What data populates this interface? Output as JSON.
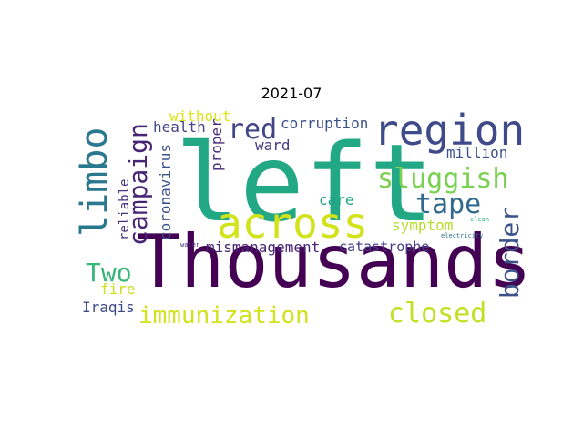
{
  "title": "2021-07",
  "words": [
    {
      "text": "left",
      "color": "#22a884",
      "orient": "h"
    },
    {
      "text": "Thousands",
      "color": "#440154",
      "orient": "h"
    },
    {
      "text": "across",
      "color": "#d2e21b",
      "orient": "h"
    },
    {
      "text": "region",
      "color": "#3e4a89",
      "orient": "h"
    },
    {
      "text": "limbo",
      "color": "#2a788e",
      "orient": "v"
    },
    {
      "text": "campaign",
      "color": "#482475",
      "orient": "v"
    },
    {
      "text": "sluggish",
      "color": "#7ad151",
      "orient": "h"
    },
    {
      "text": "tape",
      "color": "#31688e",
      "orient": "h"
    },
    {
      "text": "red",
      "color": "#414487",
      "orient": "h"
    },
    {
      "text": "border",
      "color": "#3b528b",
      "orient": "v"
    },
    {
      "text": "immunization",
      "color": "#d2e21b",
      "orient": "h"
    },
    {
      "text": "closed",
      "color": "#c2df23",
      "orient": "h"
    },
    {
      "text": "Two",
      "color": "#35b779",
      "orient": "h"
    },
    {
      "text": "without",
      "color": "#dde318",
      "orient": "h"
    },
    {
      "text": "corruption",
      "color": "#3b528b",
      "orient": "h"
    },
    {
      "text": "health",
      "color": "#414487",
      "orient": "h"
    },
    {
      "text": "ward",
      "color": "#433e85",
      "orient": "h"
    },
    {
      "text": "million",
      "color": "#3b528b",
      "orient": "h"
    },
    {
      "text": "care",
      "color": "#1fa187",
      "orient": "h"
    },
    {
      "text": "symptom",
      "color": "#b5de2b",
      "orient": "h"
    },
    {
      "text": "proper",
      "color": "#472c7a",
      "orient": "v"
    },
    {
      "text": "coronavirus",
      "color": "#3b528b",
      "orient": "v"
    },
    {
      "text": "reliable",
      "color": "#46337e",
      "orient": "v"
    },
    {
      "text": "mismanagement",
      "color": "#482475",
      "orient": "h"
    },
    {
      "text": "catastrophe",
      "color": "#433e85",
      "orient": "h"
    },
    {
      "text": "fire",
      "color": "#c8e020",
      "orient": "h"
    },
    {
      "text": "Iraqis",
      "color": "#3e4a89",
      "orient": "h"
    },
    {
      "text": "water",
      "color": "#482878",
      "orient": "h"
    },
    {
      "text": "clean",
      "color": "#29af7f",
      "orient": "h"
    },
    {
      "text": "electricity",
      "color": "#2c728e",
      "orient": "h"
    }
  ]
}
